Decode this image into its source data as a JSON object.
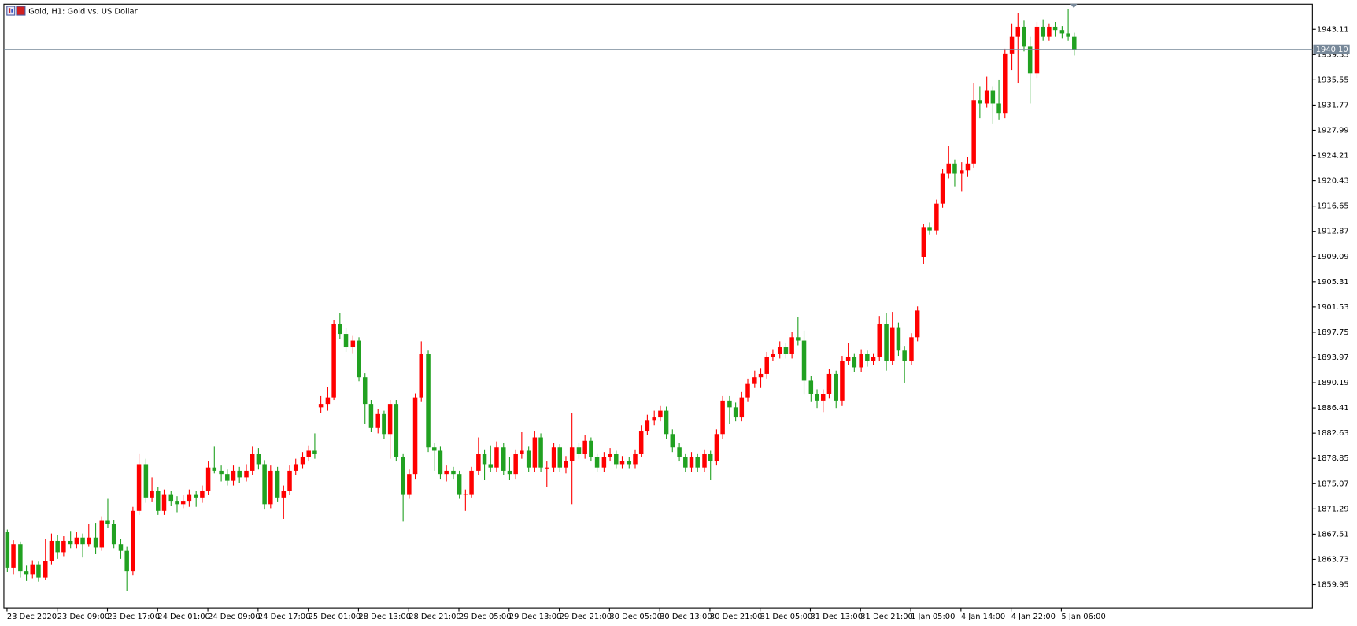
{
  "chart_data": {
    "type": "candlestick",
    "title": "Gold, H1:  Gold vs. US Dollar",
    "up_color": "#ff0000",
    "down_color": "#21a121",
    "price_color": "#778899",
    "xlim": [
      -0.5,
      208
    ],
    "ylim": [
      1856.46,
      1946.88
    ],
    "yticks": [
      1943.11,
      1939.33,
      1935.55,
      1931.77,
      1927.99,
      1924.21,
      1920.43,
      1916.65,
      1912.87,
      1909.09,
      1905.31,
      1901.53,
      1897.75,
      1893.97,
      1890.19,
      1886.41,
      1882.63,
      1878.85,
      1875.07,
      1871.29,
      1867.51,
      1863.73,
      1859.95
    ],
    "xticks": [
      {
        "value": 0,
        "label": "23 Dec 2020"
      },
      {
        "value": 8,
        "label": "23 Dec 09:00"
      },
      {
        "value": 16,
        "label": "23 Dec 17:00"
      },
      {
        "value": 24,
        "label": "24 Dec 01:00"
      },
      {
        "value": 32,
        "label": "24 Dec 09:00"
      },
      {
        "value": 40,
        "label": "24 Dec 17:00"
      },
      {
        "value": 48,
        "label": "25 Dec 01:00"
      },
      {
        "value": 56,
        "label": "28 Dec 13:00"
      },
      {
        "value": 64,
        "label": "28 Dec 21:00"
      },
      {
        "value": 72,
        "label": "29 Dec 05:00"
      },
      {
        "value": 80,
        "label": "29 Dec 13:00"
      },
      {
        "value": 88,
        "label": "29 Dec 21:00"
      },
      {
        "value": 96,
        "label": "30 Dec 05:00"
      },
      {
        "value": 104,
        "label": "30 Dec 13:00"
      },
      {
        "value": 112,
        "label": "30 Dec 21:00"
      },
      {
        "value": 120,
        "label": "31 Dec 05:00"
      },
      {
        "value": 128,
        "label": "31 Dec 13:00"
      },
      {
        "value": 136,
        "label": "31 Dec 21:00"
      },
      {
        "value": 144,
        "label": "1 Jan 05:00"
      },
      {
        "value": 152,
        "label": "4 Jan 14:00"
      },
      {
        "value": 160,
        "label": "4 Jan 22:00"
      },
      {
        "value": 168,
        "label": "5 Jan 06:00"
      }
    ],
    "price_line": {
      "value": 1940.1,
      "label": "1940.10"
    },
    "candles": [
      [
        1867.8,
        1868.2,
        1861.8,
        1862.5
      ],
      [
        1862.5,
        1866.6,
        1861.5,
        1866.0
      ],
      [
        1866.0,
        1866.4,
        1861.0,
        1862.0
      ],
      [
        1862.0,
        1862.8,
        1860.5,
        1861.5
      ],
      [
        1861.5,
        1863.6,
        1860.9,
        1863.0
      ],
      [
        1863.0,
        1863.4,
        1860.4,
        1861.0
      ],
      [
        1861.0,
        1866.8,
        1860.6,
        1863.5
      ],
      [
        1863.5,
        1867.6,
        1863.0,
        1866.5
      ],
      [
        1866.5,
        1867.4,
        1863.8,
        1864.8
      ],
      [
        1864.8,
        1867.2,
        1864.2,
        1866.5
      ],
      [
        1866.5,
        1868.0,
        1865.4,
        1866.0
      ],
      [
        1866.0,
        1867.8,
        1865.4,
        1867.0
      ],
      [
        1867.0,
        1867.6,
        1864.0,
        1866.0
      ],
      [
        1866.0,
        1869.0,
        1865.6,
        1867.0
      ],
      [
        1867.0,
        1869.2,
        1864.6,
        1865.5
      ],
      [
        1865.5,
        1870.2,
        1865.0,
        1869.5
      ],
      [
        1869.5,
        1872.8,
        1868.4,
        1869.0
      ],
      [
        1869.0,
        1869.6,
        1865.4,
        1866.0
      ],
      [
        1866.0,
        1866.8,
        1863.8,
        1865.0
      ],
      [
        1865.0,
        1865.6,
        1859.0,
        1862.0
      ],
      [
        1862.0,
        1871.6,
        1861.4,
        1871.0
      ],
      [
        1871.0,
        1879.6,
        1870.4,
        1878.0
      ],
      [
        1878.0,
        1878.8,
        1872.2,
        1873.0
      ],
      [
        1873.0,
        1876.0,
        1872.4,
        1874.0
      ],
      [
        1874.0,
        1874.6,
        1870.4,
        1871.0
      ],
      [
        1871.0,
        1874.2,
        1870.4,
        1873.5
      ],
      [
        1873.5,
        1874.0,
        1871.8,
        1872.5
      ],
      [
        1872.5,
        1873.2,
        1870.8,
        1872.0
      ],
      [
        1872.0,
        1873.4,
        1871.4,
        1872.5
      ],
      [
        1872.5,
        1874.2,
        1871.6,
        1873.5
      ],
      [
        1873.5,
        1874.0,
        1871.6,
        1873.0
      ],
      [
        1873.0,
        1874.8,
        1872.2,
        1874.0
      ],
      [
        1874.0,
        1878.4,
        1873.4,
        1877.5
      ],
      [
        1877.5,
        1880.6,
        1876.6,
        1877.0
      ],
      [
        1877.0,
        1877.8,
        1875.4,
        1876.5
      ],
      [
        1876.5,
        1877.2,
        1874.8,
        1875.5
      ],
      [
        1875.5,
        1877.8,
        1874.8,
        1877.0
      ],
      [
        1877.0,
        1877.6,
        1875.2,
        1876.0
      ],
      [
        1876.0,
        1878.0,
        1875.4,
        1877.0
      ],
      [
        1877.0,
        1880.6,
        1876.4,
        1879.5
      ],
      [
        1879.5,
        1880.4,
        1877.2,
        1878.0
      ],
      [
        1878.0,
        1878.6,
        1871.2,
        1872.0
      ],
      [
        1872.0,
        1877.8,
        1871.4,
        1877.0
      ],
      [
        1877.0,
        1877.6,
        1872.4,
        1873.0
      ],
      [
        1873.0,
        1874.8,
        1869.8,
        1874.0
      ],
      [
        1874.0,
        1877.8,
        1873.4,
        1877.0
      ],
      [
        1877.0,
        1878.8,
        1876.4,
        1878.0
      ],
      [
        1878.0,
        1879.8,
        1877.4,
        1879.0
      ],
      [
        1879.0,
        1880.8,
        1878.4,
        1880.0
      ],
      [
        1880.0,
        1882.6,
        1878.8,
        1879.5
      ],
      [
        1886.5,
        1888.2,
        1885.6,
        1887.0
      ],
      [
        1887.0,
        1889.6,
        1886.0,
        1888.0
      ],
      [
        1888.0,
        1899.6,
        1887.6,
        1899.0
      ],
      [
        1899.0,
        1900.6,
        1896.8,
        1897.5
      ],
      [
        1897.5,
        1898.4,
        1894.8,
        1895.5
      ],
      [
        1895.5,
        1897.2,
        1894.6,
        1896.5
      ],
      [
        1896.5,
        1897.0,
        1890.4,
        1891.0
      ],
      [
        1891.0,
        1891.6,
        1884.0,
        1887.0
      ],
      [
        1887.0,
        1887.6,
        1882.8,
        1883.5
      ],
      [
        1883.5,
        1886.2,
        1882.6,
        1885.5
      ],
      [
        1885.5,
        1886.0,
        1881.8,
        1882.5
      ],
      [
        1882.5,
        1887.6,
        1878.8,
        1887.0
      ],
      [
        1887.0,
        1887.6,
        1878.4,
        1879.0
      ],
      [
        1879.0,
        1879.6,
        1869.4,
        1873.5
      ],
      [
        1873.5,
        1877.2,
        1872.8,
        1876.5
      ],
      [
        1876.5,
        1888.6,
        1875.8,
        1888.0
      ],
      [
        1888.0,
        1896.4,
        1887.4,
        1894.5
      ],
      [
        1894.5,
        1895.0,
        1879.8,
        1880.5
      ],
      [
        1880.5,
        1881.2,
        1877.0,
        1880.0
      ],
      [
        1880.0,
        1880.6,
        1875.8,
        1876.5
      ],
      [
        1876.5,
        1877.8,
        1875.4,
        1877.0
      ],
      [
        1877.0,
        1877.6,
        1875.8,
        1876.5
      ],
      [
        1876.5,
        1877.0,
        1872.8,
        1873.5
      ],
      [
        1873.5,
        1874.2,
        1871.0,
        1873.5
      ],
      [
        1873.5,
        1877.6,
        1873.0,
        1877.0
      ],
      [
        1877.0,
        1882.0,
        1876.4,
        1879.5
      ],
      [
        1879.5,
        1880.2,
        1875.6,
        1878.0
      ],
      [
        1878.0,
        1880.8,
        1876.8,
        1877.5
      ],
      [
        1877.5,
        1881.4,
        1876.8,
        1880.5
      ],
      [
        1880.5,
        1881.2,
        1876.4,
        1877.0
      ],
      [
        1877.0,
        1879.0,
        1875.6,
        1876.5
      ],
      [
        1876.5,
        1880.2,
        1875.8,
        1879.5
      ],
      [
        1879.5,
        1882.8,
        1878.8,
        1880.0
      ],
      [
        1880.0,
        1880.6,
        1876.8,
        1877.5
      ],
      [
        1877.5,
        1883.0,
        1876.8,
        1882.0
      ],
      [
        1882.0,
        1882.6,
        1876.8,
        1877.5
      ],
      [
        1877.5,
        1878.4,
        1874.6,
        1877.5
      ],
      [
        1877.5,
        1881.2,
        1876.8,
        1880.5
      ],
      [
        1880.5,
        1881.0,
        1876.8,
        1877.5
      ],
      [
        1877.5,
        1879.2,
        1876.6,
        1878.5
      ],
      [
        1878.5,
        1885.6,
        1872.0,
        1880.5
      ],
      [
        1880.5,
        1881.2,
        1878.8,
        1879.5
      ],
      [
        1879.5,
        1882.4,
        1878.8,
        1881.5
      ],
      [
        1881.5,
        1882.0,
        1878.4,
        1879.0
      ],
      [
        1879.0,
        1879.6,
        1876.8,
        1877.5
      ],
      [
        1877.5,
        1879.8,
        1876.8,
        1879.0
      ],
      [
        1879.0,
        1880.4,
        1878.4,
        1879.5
      ],
      [
        1879.5,
        1880.0,
        1877.4,
        1878.0
      ],
      [
        1878.0,
        1879.2,
        1877.4,
        1878.5
      ],
      [
        1878.5,
        1879.0,
        1877.4,
        1878.0
      ],
      [
        1878.0,
        1880.2,
        1877.4,
        1879.5
      ],
      [
        1879.5,
        1883.8,
        1879.0,
        1883.0
      ],
      [
        1883.0,
        1885.4,
        1882.4,
        1884.5
      ],
      [
        1884.5,
        1886.0,
        1883.8,
        1885.0
      ],
      [
        1885.0,
        1886.8,
        1884.4,
        1886.0
      ],
      [
        1886.0,
        1886.6,
        1881.8,
        1882.5
      ],
      [
        1882.5,
        1883.2,
        1879.8,
        1880.5
      ],
      [
        1880.5,
        1881.2,
        1878.4,
        1879.0
      ],
      [
        1879.0,
        1879.6,
        1876.8,
        1877.5
      ],
      [
        1877.5,
        1879.8,
        1876.8,
        1879.0
      ],
      [
        1879.0,
        1879.6,
        1876.8,
        1877.5
      ],
      [
        1877.5,
        1880.2,
        1876.8,
        1879.5
      ],
      [
        1879.5,
        1880.0,
        1875.6,
        1878.5
      ],
      [
        1878.5,
        1883.2,
        1877.8,
        1882.5
      ],
      [
        1882.5,
        1888.2,
        1881.8,
        1887.5
      ],
      [
        1887.5,
        1888.2,
        1884.0,
        1886.5
      ],
      [
        1886.5,
        1887.2,
        1884.4,
        1885.0
      ],
      [
        1885.0,
        1888.8,
        1884.4,
        1888.0
      ],
      [
        1888.0,
        1890.8,
        1887.4,
        1890.0
      ],
      [
        1890.0,
        1892.0,
        1889.4,
        1891.0
      ],
      [
        1891.0,
        1892.4,
        1889.4,
        1891.5
      ],
      [
        1891.5,
        1894.8,
        1890.8,
        1894.0
      ],
      [
        1894.0,
        1895.2,
        1893.4,
        1894.5
      ],
      [
        1894.5,
        1896.4,
        1893.8,
        1895.5
      ],
      [
        1895.5,
        1896.2,
        1893.8,
        1894.5
      ],
      [
        1894.5,
        1897.8,
        1893.8,
        1897.0
      ],
      [
        1897.0,
        1900.0,
        1895.8,
        1896.5
      ],
      [
        1896.5,
        1898.0,
        1888.4,
        1890.5
      ],
      [
        1890.5,
        1891.2,
        1887.4,
        1888.5
      ],
      [
        1888.5,
        1889.2,
        1886.4,
        1887.5
      ],
      [
        1887.5,
        1889.2,
        1885.8,
        1888.5
      ],
      [
        1888.5,
        1892.2,
        1887.8,
        1891.5
      ],
      [
        1891.5,
        1892.0,
        1886.4,
        1887.5
      ],
      [
        1887.5,
        1894.2,
        1886.8,
        1893.5
      ],
      [
        1893.5,
        1896.2,
        1892.8,
        1894.0
      ],
      [
        1894.0,
        1894.6,
        1891.8,
        1892.5
      ],
      [
        1892.5,
        1895.2,
        1891.8,
        1894.5
      ],
      [
        1894.5,
        1895.0,
        1892.6,
        1893.5
      ],
      [
        1893.5,
        1894.6,
        1892.8,
        1894.0
      ],
      [
        1894.0,
        1900.2,
        1893.4,
        1899.0
      ],
      [
        1899.0,
        1900.6,
        1892.0,
        1893.5
      ],
      [
        1893.5,
        1900.8,
        1892.8,
        1898.5
      ],
      [
        1898.5,
        1899.2,
        1894.2,
        1895.0
      ],
      [
        1895.0,
        1895.6,
        1890.2,
        1893.5
      ],
      [
        1893.5,
        1897.6,
        1892.8,
        1897.0
      ],
      [
        1897.0,
        1901.6,
        1896.4,
        1901.0
      ],
      [
        1909.0,
        1914.0,
        1908.0,
        1913.5
      ],
      [
        1913.5,
        1914.2,
        1912.4,
        1913.0
      ],
      [
        1913.0,
        1917.6,
        1912.4,
        1917.0
      ],
      [
        1917.0,
        1922.2,
        1916.4,
        1921.5
      ],
      [
        1921.5,
        1925.6,
        1920.8,
        1923.0
      ],
      [
        1923.0,
        1923.6,
        1919.6,
        1921.5
      ],
      [
        1921.5,
        1923.2,
        1918.8,
        1922.0
      ],
      [
        1922.0,
        1924.0,
        1921.0,
        1923.0
      ],
      [
        1923.0,
        1935.0,
        1922.4,
        1932.5
      ],
      [
        1932.5,
        1934.6,
        1929.8,
        1932.0
      ],
      [
        1932.0,
        1936.0,
        1931.4,
        1934.0
      ],
      [
        1934.0,
        1934.6,
        1929.0,
        1932.0
      ],
      [
        1932.0,
        1935.6,
        1929.6,
        1930.5
      ],
      [
        1930.5,
        1940.2,
        1929.8,
        1939.5
      ],
      [
        1939.5,
        1944.0,
        1937.0,
        1942.0
      ],
      [
        1942.0,
        1945.6,
        1935.0,
        1943.5
      ],
      [
        1943.5,
        1944.4,
        1939.8,
        1940.5
      ],
      [
        1940.5,
        1942.0,
        1932.0,
        1936.5
      ],
      [
        1936.5,
        1944.2,
        1935.8,
        1943.5
      ],
      [
        1943.5,
        1944.6,
        1941.4,
        1942.0
      ],
      [
        1942.0,
        1944.0,
        1941.4,
        1943.5
      ],
      [
        1943.5,
        1944.2,
        1942.0,
        1943.0
      ],
      [
        1943.0,
        1943.6,
        1941.8,
        1942.5
      ],
      [
        1942.5,
        1946.2,
        1941.4,
        1942.0
      ],
      [
        1942.0,
        1942.6,
        1939.2,
        1940.1
      ]
    ]
  }
}
